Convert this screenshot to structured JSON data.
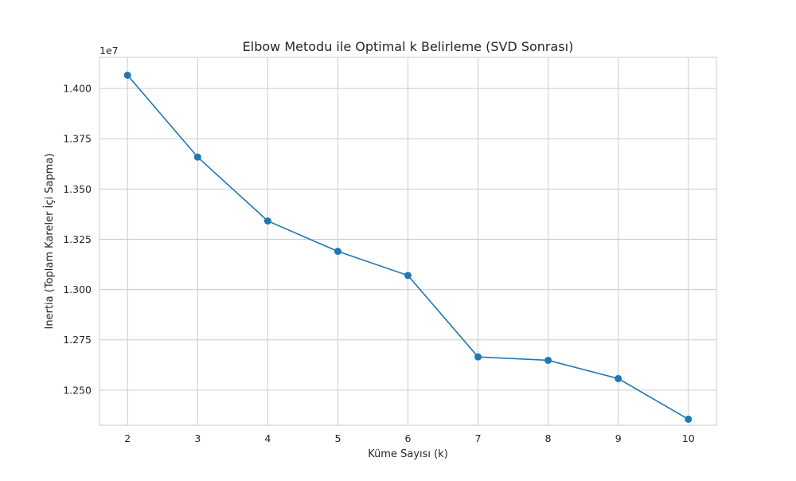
{
  "chart_data": {
    "type": "line",
    "title": "Elbow Metodu ile Optimal k Belirleme (SVD Sonrası)",
    "xlabel": "Küme Sayısı (k)",
    "ylabel": "Inertia (Toplam Kareler İçi Sapma)",
    "y_offset_label": "1e7",
    "x": [
      2,
      3,
      4,
      5,
      6,
      7,
      8,
      9,
      10
    ],
    "series": [
      {
        "values": [
          14066000,
          13659000,
          13341000,
          13190000,
          13070000,
          12665000,
          12648000,
          12557000,
          12355000
        ]
      }
    ],
    "xlim": [
      1.6,
      10.4
    ],
    "ylim": [
      12325000,
      14155000
    ],
    "x_ticks": [
      2,
      3,
      4,
      5,
      6,
      7,
      8,
      9,
      10
    ],
    "x_tick_labels": [
      "2",
      "3",
      "4",
      "5",
      "6",
      "7",
      "8",
      "9",
      "10"
    ],
    "y_ticks": [
      12500000,
      12750000,
      13000000,
      13250000,
      13500000,
      13750000,
      14000000
    ],
    "y_tick_labels": [
      "1.250",
      "1.275",
      "1.300",
      "1.325",
      "1.350",
      "1.375",
      "1.400"
    ],
    "grid": true,
    "markers": "circle",
    "line_color": "#1f77b4"
  }
}
